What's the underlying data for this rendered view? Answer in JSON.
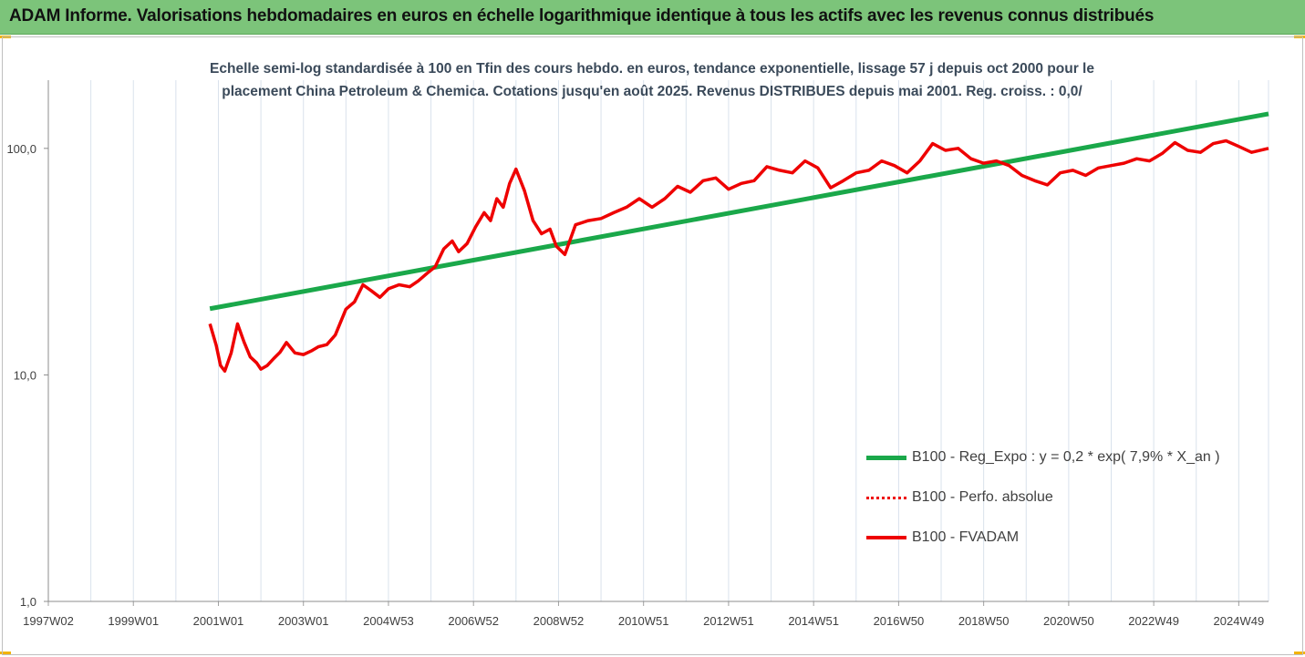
{
  "banner": {
    "title": "ADAM Informe. Valorisations hebdomadaires en euros en échelle logarithmique identique à tous les actifs avec les revenus connus distribués"
  },
  "colors": {
    "banner_bg": "#7cc47a",
    "regression": "#1aa84a",
    "fvadam": "#ee0000",
    "perfo": "#ee0000",
    "grid": "#d9e2ec",
    "axis_text": "#404040"
  },
  "chart_data": {
    "type": "line",
    "title_line1": "Echelle semi-log standardisée à 100 en Tfin des cours hebdo. en euros, tendance exponentielle, lissage 57 j depuis oct 2000 pour le",
    "title_line2": "placement China Petroleum & Chemica. Cotations jusqu'en août 2025. Revenus DISTRIBUES depuis mai 2001. Reg. croiss. : 0,0/",
    "y_scale": "log",
    "ylim": [
      1,
      200
    ],
    "y_ticks": [
      {
        "value": 1,
        "label": "1,0"
      },
      {
        "value": 10,
        "label": "10,0"
      },
      {
        "value": 100,
        "label": "100,0"
      }
    ],
    "xlim": [
      1997.0,
      2025.7
    ],
    "x_ticks": [
      {
        "value": 1997.0,
        "label": "1997W02"
      },
      {
        "value": 1999.0,
        "label": "1999W01"
      },
      {
        "value": 2001.0,
        "label": "2001W01"
      },
      {
        "value": 2003.0,
        "label": "2003W01"
      },
      {
        "value": 2005.0,
        "label": "2004W53"
      },
      {
        "value": 2007.0,
        "label": "2006W52"
      },
      {
        "value": 2009.0,
        "label": "2008W52"
      },
      {
        "value": 2011.0,
        "label": "2010W51"
      },
      {
        "value": 2013.0,
        "label": "2012W51"
      },
      {
        "value": 2015.0,
        "label": "2014W51"
      },
      {
        "value": 2017.0,
        "label": "2016W50"
      },
      {
        "value": 2019.0,
        "label": "2018W50"
      },
      {
        "value": 2021.0,
        "label": "2020W50"
      },
      {
        "value": 2023.0,
        "label": "2022W49"
      },
      {
        "value": 2025.0,
        "label": "2024W49"
      }
    ],
    "grid": "vertical",
    "legend_position": "right",
    "series": [
      {
        "name": "B100 - Reg_Expo : y = 0,2 * exp( 7,9% *  X_an )",
        "style": "solid",
        "x": [
          2000.8,
          2025.7
        ],
        "y": [
          19.6,
          142
        ]
      },
      {
        "name": "B100 - Perfo. absolue",
        "style": "dotted",
        "x": [],
        "y": []
      },
      {
        "name": "B100 - FVADAM",
        "style": "solid",
        "x": [
          2000.8,
          2000.95,
          2001.05,
          2001.15,
          2001.3,
          2001.45,
          2001.6,
          2001.75,
          2001.9,
          2002.0,
          2002.15,
          2002.3,
          2002.45,
          2002.6,
          2002.8,
          2003.0,
          2003.2,
          2003.35,
          2003.55,
          2003.75,
          2004.0,
          2004.2,
          2004.4,
          2004.6,
          2004.8,
          2005.0,
          2005.25,
          2005.5,
          2005.7,
          2005.9,
          2006.1,
          2006.3,
          2006.5,
          2006.65,
          2006.85,
          2007.05,
          2007.25,
          2007.4,
          2007.55,
          2007.7,
          2007.85,
          2008.0,
          2008.2,
          2008.4,
          2008.6,
          2008.8,
          2008.95,
          2009.15,
          2009.4,
          2009.7,
          2010.0,
          2010.3,
          2010.6,
          2010.9,
          2011.2,
          2011.5,
          2011.8,
          2012.1,
          2012.4,
          2012.7,
          2013.0,
          2013.3,
          2013.6,
          2013.9,
          2014.2,
          2014.5,
          2014.8,
          2015.1,
          2015.4,
          2015.7,
          2016.0,
          2016.3,
          2016.6,
          2016.9,
          2017.2,
          2017.5,
          2017.8,
          2018.1,
          2018.4,
          2018.7,
          2019.0,
          2019.3,
          2019.6,
          2019.9,
          2020.2,
          2020.5,
          2020.8,
          2021.1,
          2021.4,
          2021.7,
          2022.0,
          2022.3,
          2022.6,
          2022.9,
          2023.2,
          2023.5,
          2023.8,
          2024.1,
          2024.4,
          2024.7,
          2025.0,
          2025.3,
          2025.7
        ],
        "y": [
          16.8,
          13.5,
          11.0,
          10.4,
          12.5,
          16.8,
          14.0,
          12.0,
          11.3,
          10.6,
          11.0,
          11.8,
          12.6,
          13.9,
          12.5,
          12.3,
          12.8,
          13.3,
          13.6,
          15.0,
          19.5,
          21.0,
          25.0,
          23.5,
          22.0,
          24.0,
          25.0,
          24.5,
          26.0,
          28.0,
          30.0,
          36.0,
          39.0,
          35.0,
          38.0,
          45.0,
          52.0,
          48.0,
          60.0,
          55.0,
          70.0,
          81.0,
          65.0,
          48.0,
          42.0,
          44.0,
          37.0,
          34.0,
          46.0,
          48.0,
          49.0,
          52.0,
          55.0,
          60.0,
          55.0,
          60.0,
          68.0,
          64.0,
          72.0,
          74.0,
          66.0,
          70.0,
          72.0,
          83.0,
          80.0,
          78.0,
          88.0,
          82.0,
          67.0,
          72.0,
          78.0,
          80.0,
          88.0,
          84.0,
          78.0,
          88.0,
          105.0,
          98.0,
          100.0,
          90.0,
          86.0,
          88.0,
          84.0,
          76.0,
          72.0,
          69.0,
          78.0,
          80.0,
          76.0,
          82.0,
          84.0,
          86.0,
          90.0,
          88.0,
          95.0,
          106.0,
          98.0,
          96.0,
          105.0,
          108.0,
          102.0,
          96.0,
          100.0
        ]
      }
    ]
  }
}
